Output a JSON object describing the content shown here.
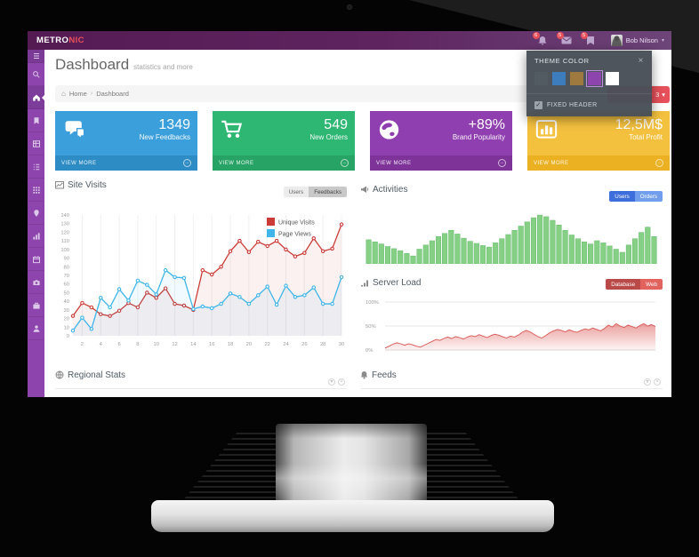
{
  "topbar": {
    "logo_primary": "METRO",
    "logo_accent": "NIC",
    "notifications": [
      {
        "icon": "bell-icon",
        "badge": "6"
      },
      {
        "icon": "envelope-icon",
        "badge": "5"
      },
      {
        "icon": "flag-icon",
        "badge": "5"
      }
    ],
    "user_name": "Bob Nilson"
  },
  "sidebar": {
    "items": [
      {
        "icon": "menu-toggler",
        "active": false
      },
      {
        "icon": "search",
        "active": false
      },
      {
        "icon": "home",
        "active": true
      },
      {
        "icon": "bookmark",
        "active": false
      },
      {
        "icon": "tables",
        "active": false
      },
      {
        "icon": "list",
        "active": false
      },
      {
        "icon": "apps",
        "active": false
      },
      {
        "icon": "location",
        "active": false
      },
      {
        "icon": "charts",
        "active": false
      },
      {
        "icon": "calendar",
        "active": false
      },
      {
        "icon": "camera",
        "active": false
      },
      {
        "icon": "briefcase",
        "active": false
      },
      {
        "icon": "user",
        "active": false
      }
    ]
  },
  "page": {
    "title": "Dashboard",
    "subtitle": "statistics and more",
    "breadcrumb": {
      "home": "Home",
      "current": "Dashboard"
    },
    "date_button_visible_text": "3"
  },
  "theme_panel": {
    "title": "THEME COLOR",
    "close_glyph": "×",
    "colors": [
      "#525b61",
      "#3e7dbd",
      "#9e7a3f",
      "#8e44ad",
      "#ffffff"
    ],
    "selected_index": 3,
    "fixed_header_label": "FIXED HEADER",
    "checkbox_checked": true
  },
  "view_more_label": "VIEW MORE",
  "stats": [
    {
      "value": "1349",
      "label": "New Feedbacks",
      "icon": "comments-icon",
      "bg": "#3b9fdc",
      "footer_bg": "#2e8cc5"
    },
    {
      "value": "549",
      "label": "New Orders",
      "icon": "cart-icon",
      "bg": "#2eb673",
      "footer_bg": "#27a465"
    },
    {
      "value": "+89%",
      "label": "Brand Popularity",
      "icon": "globe-icon",
      "bg": "#8f3faf",
      "footer_bg": "#7e3399"
    },
    {
      "value": "12,5M$",
      "label": "Total Profit",
      "icon": "bar-chart-icon",
      "bg": "#f4c13f",
      "footer_bg": "#ecb122"
    }
  ],
  "portlets": {
    "site_visits": {
      "title": "Site Visits",
      "buttons": [
        "Users",
        "Feedbacks"
      ],
      "active_button": 1
    },
    "activities": {
      "title": "Activities",
      "buttons": [
        "Users",
        "Orders"
      ],
      "active_button": 0
    },
    "server_load": {
      "title": "Server Load",
      "buttons": [
        "Database",
        "Web"
      ],
      "active_button": 0
    },
    "regional_stats": {
      "title": "Regional Stats"
    },
    "feeds": {
      "title": "Feeds"
    }
  },
  "chart_data": [
    {
      "type": "line",
      "title": "Site Visits",
      "x": [
        1,
        2,
        3,
        4,
        5,
        6,
        7,
        8,
        9,
        10,
        11,
        12,
        13,
        14,
        15,
        16,
        17,
        18,
        19,
        20,
        21,
        22,
        23,
        24,
        25,
        26,
        27,
        28,
        29,
        30
      ],
      "xticks": [
        2,
        4,
        6,
        8,
        10,
        12,
        14,
        16,
        18,
        20,
        22,
        24,
        26,
        28,
        30
      ],
      "ylim": [
        0,
        140
      ],
      "ytick_step": 10,
      "grid": "vertical",
      "legend_position": "top-right",
      "series": [
        {
          "name": "Unique Visits",
          "color": "#cc3c36",
          "values": [
            23,
            38,
            33,
            25,
            23,
            29,
            38,
            33,
            50,
            44,
            55,
            37,
            35,
            30,
            76,
            71,
            80,
            98,
            110,
            97,
            109,
            104,
            110,
            100,
            92,
            96,
            113,
            98,
            101,
            129
          ]
        },
        {
          "name": "Page Views",
          "color": "#3fb5ea",
          "values": [
            6,
            21,
            8,
            44,
            33,
            54,
            41,
            64,
            59,
            48,
            76,
            68,
            67,
            31,
            34,
            32,
            37,
            49,
            45,
            37,
            47,
            57,
            36,
            58,
            45,
            47,
            56,
            37,
            37,
            68
          ]
        }
      ]
    },
    {
      "type": "bar",
      "title": "Activities",
      "bar_color": "#85d085",
      "bar_border": "#63bb6b",
      "ylim": [
        0,
        100
      ],
      "values": [
        46,
        42,
        38,
        33,
        29,
        25,
        20,
        15,
        28,
        36,
        44,
        52,
        58,
        64,
        57,
        49,
        43,
        39,
        35,
        32,
        40,
        48,
        56,
        64,
        72,
        80,
        88,
        93,
        90,
        83,
        74,
        64,
        55,
        48,
        42,
        38,
        44,
        40,
        34,
        28,
        22,
        36,
        48,
        60,
        70,
        52
      ]
    },
    {
      "type": "area",
      "title": "Server Load",
      "line_color": "#d9534f",
      "ylim": [
        0,
        100
      ],
      "yticks": [
        "0%",
        "50%",
        "100%"
      ],
      "values": [
        4,
        8,
        12,
        15,
        13,
        10,
        13,
        11,
        8,
        6,
        10,
        14,
        18,
        22,
        20,
        24,
        27,
        24,
        28,
        26,
        23,
        27,
        30,
        28,
        32,
        29,
        26,
        30,
        33,
        31,
        28,
        25,
        29,
        27,
        31,
        37,
        41,
        38,
        33,
        28,
        25,
        30,
        36,
        40,
        43,
        41,
        38,
        42,
        39,
        37,
        41,
        44,
        42,
        46,
        43,
        40,
        45,
        52,
        48,
        55,
        50,
        47,
        52,
        49,
        46,
        51,
        55,
        50,
        53,
        49
      ]
    }
  ]
}
